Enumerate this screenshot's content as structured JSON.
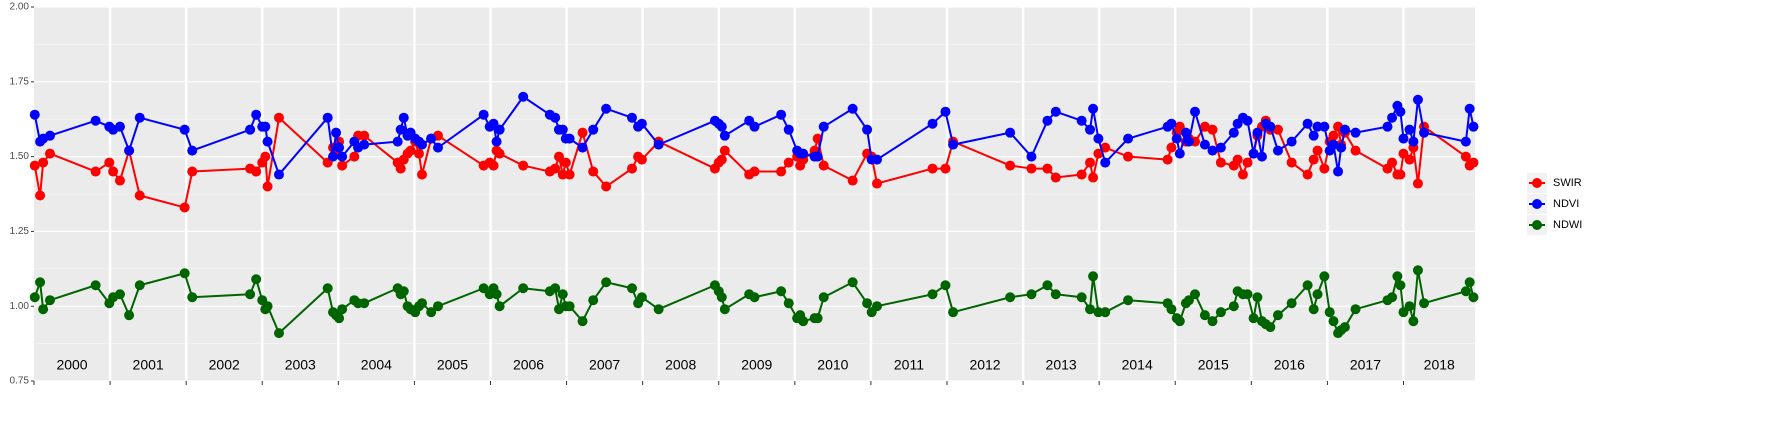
{
  "chart_data": {
    "type": "line",
    "x": [
      2000.01,
      2000.08,
      2000.12,
      2000.21,
      2000.81,
      2000.99,
      2001.04,
      2001.13,
      2001.25,
      2001.39,
      2001.98,
      2002.08,
      2002.84,
      2002.92,
      2003.0,
      2003.04,
      2003.07,
      2003.22,
      2003.86,
      2003.93,
      2003.97,
      2004.01,
      2004.05,
      2004.21,
      2004.26,
      2004.34,
      2004.78,
      2004.82,
      2004.86,
      2004.91,
      2004.95,
      2005.01,
      2005.06,
      2005.1,
      2005.22,
      2005.31,
      2005.91,
      2005.99,
      2006.04,
      2006.08,
      2006.12,
      2006.43,
      2006.78,
      2006.85,
      2006.9,
      2006.95,
      2006.99,
      2007.04,
      2007.21,
      2007.35,
      2007.52,
      2007.86,
      2007.94,
      2007.99,
      2008.21,
      2008.95,
      2009.0,
      2009.04,
      2009.08,
      2009.4,
      2009.47,
      2009.82,
      2009.92,
      2010.03,
      2010.07,
      2010.11,
      2010.26,
      2010.3,
      2010.38,
      2010.76,
      2010.95,
      2011.01,
      2011.08,
      2011.81,
      2011.98,
      2012.08,
      2012.83,
      2013.11,
      2013.32,
      2013.43,
      2013.77,
      2013.88,
      2013.92,
      2013.99,
      2014.08,
      2014.38,
      2014.9,
      2014.95,
      2015.02,
      2015.06,
      2015.14,
      2015.18,
      2015.26,
      2015.39,
      2015.49,
      2015.6,
      2015.77,
      2015.82,
      2015.89,
      2015.95,
      2016.03,
      2016.08,
      2016.14,
      2016.19,
      2016.25,
      2016.35,
      2016.53,
      2016.74,
      2016.82,
      2016.87,
      2016.96,
      2017.03,
      2017.08,
      2017.14,
      2017.18,
      2017.23,
      2017.37,
      2017.79,
      2017.85,
      2017.92,
      2017.96,
      2018.0,
      2018.08,
      2018.13,
      2018.19,
      2018.27,
      2018.82,
      2018.87,
      2018.92
    ],
    "series": [
      {
        "name": "SWIR",
        "color": "#ff0000",
        "values": [
          1.47,
          1.37,
          1.48,
          1.51,
          1.45,
          1.48,
          1.45,
          1.42,
          1.52,
          1.37,
          1.33,
          1.45,
          1.46,
          1.45,
          1.48,
          1.5,
          1.4,
          1.63,
          1.48,
          1.53,
          1.52,
          1.55,
          1.47,
          1.5,
          1.57,
          1.57,
          1.48,
          1.46,
          1.49,
          1.51,
          1.52,
          1.55,
          1.51,
          1.44,
          1.56,
          1.57,
          1.47,
          1.48,
          1.47,
          1.52,
          1.51,
          1.47,
          1.45,
          1.46,
          1.5,
          1.44,
          1.48,
          1.44,
          1.58,
          1.45,
          1.4,
          1.46,
          1.5,
          1.49,
          1.55,
          1.46,
          1.48,
          1.49,
          1.52,
          1.44,
          1.45,
          1.45,
          1.48,
          1.5,
          1.47,
          1.49,
          1.52,
          1.56,
          1.47,
          1.42,
          1.51,
          1.5,
          1.41,
          1.46,
          1.46,
          1.55,
          1.47,
          1.46,
          1.46,
          1.43,
          1.44,
          1.48,
          1.43,
          1.51,
          1.53,
          1.5,
          1.49,
          1.53,
          1.58,
          1.6,
          1.55,
          1.56,
          1.55,
          1.6,
          1.59,
          1.48,
          1.47,
          1.49,
          1.44,
          1.48,
          1.51,
          1.57,
          1.6,
          1.62,
          1.59,
          1.59,
          1.48,
          1.44,
          1.49,
          1.52,
          1.46,
          1.55,
          1.57,
          1.6,
          1.54,
          1.58,
          1.52,
          1.46,
          1.48,
          1.44,
          1.44,
          1.51,
          1.49,
          1.53,
          1.41,
          1.6,
          1.5,
          1.47,
          1.48
        ]
      },
      {
        "name": "NDVI",
        "color": "#0000ff",
        "values": [
          1.64,
          1.55,
          1.56,
          1.57,
          1.62,
          1.6,
          1.59,
          1.6,
          1.52,
          1.63,
          1.59,
          1.52,
          1.59,
          1.64,
          1.6,
          1.6,
          1.55,
          1.44,
          1.63,
          1.5,
          1.58,
          1.53,
          1.5,
          1.55,
          1.53,
          1.54,
          1.55,
          1.59,
          1.63,
          1.57,
          1.58,
          1.56,
          1.55,
          1.54,
          1.56,
          1.53,
          1.64,
          1.6,
          1.61,
          1.55,
          1.59,
          1.7,
          1.64,
          1.63,
          1.59,
          1.59,
          1.56,
          1.56,
          1.53,
          1.59,
          1.66,
          1.63,
          1.6,
          1.61,
          1.54,
          1.62,
          1.61,
          1.6,
          1.57,
          1.62,
          1.6,
          1.64,
          1.59,
          1.52,
          1.51,
          1.51,
          1.5,
          1.5,
          1.6,
          1.66,
          1.59,
          1.49,
          1.49,
          1.61,
          1.65,
          1.54,
          1.58,
          1.5,
          1.62,
          1.65,
          1.62,
          1.59,
          1.66,
          1.56,
          1.48,
          1.56,
          1.6,
          1.61,
          1.56,
          1.51,
          1.58,
          1.55,
          1.65,
          1.54,
          1.52,
          1.53,
          1.58,
          1.61,
          1.63,
          1.62,
          1.51,
          1.58,
          1.5,
          1.61,
          1.6,
          1.52,
          1.55,
          1.61,
          1.57,
          1.6,
          1.6,
          1.52,
          1.54,
          1.45,
          1.53,
          1.59,
          1.58,
          1.6,
          1.63,
          1.67,
          1.65,
          1.56,
          1.59,
          1.55,
          1.69,
          1.58,
          1.55,
          1.66,
          1.6
        ]
      },
      {
        "name": "NDWI",
        "color": "#006400",
        "values": [
          1.03,
          1.08,
          0.99,
          1.02,
          1.07,
          1.01,
          1.03,
          1.04,
          0.97,
          1.07,
          1.11,
          1.03,
          1.04,
          1.09,
          1.02,
          0.99,
          1.0,
          0.91,
          1.06,
          0.98,
          0.97,
          0.96,
          0.99,
          1.02,
          1.01,
          1.01,
          1.06,
          1.04,
          1.05,
          1.0,
          0.99,
          0.98,
          1.0,
          1.01,
          0.98,
          1.0,
          1.06,
          1.04,
          1.06,
          1.04,
          1.0,
          1.06,
          1.05,
          1.06,
          0.99,
          1.04,
          1.0,
          1.0,
          0.95,
          1.02,
          1.08,
          1.06,
          1.01,
          1.03,
          0.99,
          1.07,
          1.05,
          1.03,
          0.99,
          1.04,
          1.03,
          1.05,
          1.01,
          0.96,
          0.97,
          0.95,
          0.96,
          0.96,
          1.03,
          1.08,
          1.01,
          0.98,
          1.0,
          1.04,
          1.07,
          0.98,
          1.03,
          1.04,
          1.07,
          1.04,
          1.03,
          0.99,
          1.1,
          0.98,
          0.98,
          1.02,
          1.01,
          0.99,
          0.96,
          0.95,
          1.01,
          1.02,
          1.04,
          0.97,
          0.95,
          0.98,
          1.0,
          1.05,
          1.04,
          1.04,
          0.96,
          1.03,
          0.95,
          0.94,
          0.93,
          0.97,
          1.01,
          1.07,
          0.99,
          1.04,
          1.1,
          0.98,
          0.95,
          0.91,
          0.92,
          0.93,
          0.99,
          1.02,
          1.03,
          1.1,
          1.07,
          0.98,
          1.0,
          0.95,
          1.12,
          1.01,
          1.05,
          1.08,
          1.03
        ]
      }
    ],
    "xlim": [
      2000,
      2018.94
    ],
    "ylim": [
      0.75,
      2.0
    ],
    "yticks": [
      {
        "value": 0.75,
        "label": "0.75"
      },
      {
        "value": 1.0,
        "label": "1.00"
      },
      {
        "value": 1.25,
        "label": "1.25"
      },
      {
        "value": 1.5,
        "label": "1.50"
      },
      {
        "value": 1.75,
        "label": "1.75"
      },
      {
        "value": 2.0,
        "label": "2.00"
      }
    ],
    "minor_yticks": [
      0.875,
      1.125,
      1.375,
      1.625,
      1.875
    ],
    "x_bands": [
      {
        "value": 2000,
        "label": "2000"
      },
      {
        "value": 2001,
        "label": "2001"
      },
      {
        "value": 2002,
        "label": "2002"
      },
      {
        "value": 2003,
        "label": "2003"
      },
      {
        "value": 2004,
        "label": "2004"
      },
      {
        "value": 2005,
        "label": "2005"
      },
      {
        "value": 2006,
        "label": "2006"
      },
      {
        "value": 2007,
        "label": "2007"
      },
      {
        "value": 2008,
        "label": "2008"
      },
      {
        "value": 2009,
        "label": "2009"
      },
      {
        "value": 2010,
        "label": "2010"
      },
      {
        "value": 2011,
        "label": "2011"
      },
      {
        "value": 2012,
        "label": "2012"
      },
      {
        "value": 2013,
        "label": "2013"
      },
      {
        "value": 2014,
        "label": "2014"
      },
      {
        "value": 2015,
        "label": "2015"
      },
      {
        "value": 2016,
        "label": "2016"
      },
      {
        "value": 2017,
        "label": "2017"
      },
      {
        "value": 2018,
        "label": "2018"
      }
    ],
    "grid": true,
    "legend": "right"
  }
}
